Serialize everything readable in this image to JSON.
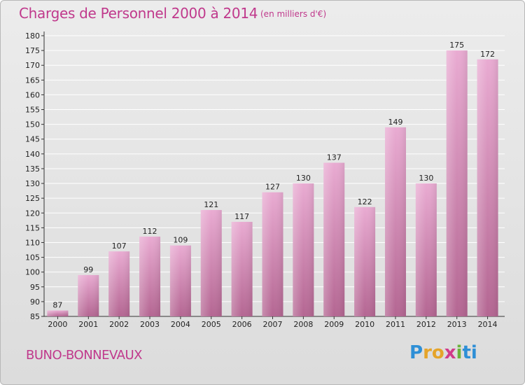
{
  "title": "Charges de Personnel 2000 à 2014",
  "subtitle": "(en milliers d'€)",
  "commune": "BUNO-BONNEVAUX",
  "logo": {
    "text": "Proxiti",
    "letters": [
      "P",
      "r",
      "o",
      "x",
      "i",
      "ti"
    ]
  },
  "colors": {
    "accent": "#c0398c",
    "bar_top": "#e9abd2",
    "bar_bottom": "#b46692",
    "grid": "#ffffff"
  },
  "chart_data": {
    "type": "bar",
    "title": "Charges de Personnel 2000 à 2014",
    "subtitle": "(en milliers d'€)",
    "categories": [
      "2000",
      "2001",
      "2002",
      "2003",
      "2004",
      "2005",
      "2006",
      "2007",
      "2008",
      "2009",
      "2010",
      "2011",
      "2012",
      "2013",
      "2014"
    ],
    "values": [
      87,
      99,
      107,
      112,
      109,
      121,
      117,
      127,
      130,
      137,
      122,
      149,
      130,
      175,
      172
    ],
    "ylim": [
      85,
      180
    ],
    "yticks": [
      85,
      90,
      95,
      100,
      105,
      110,
      115,
      120,
      125,
      130,
      135,
      140,
      145,
      150,
      155,
      160,
      165,
      170,
      175,
      180
    ],
    "grid": true,
    "data_labels": true
  }
}
